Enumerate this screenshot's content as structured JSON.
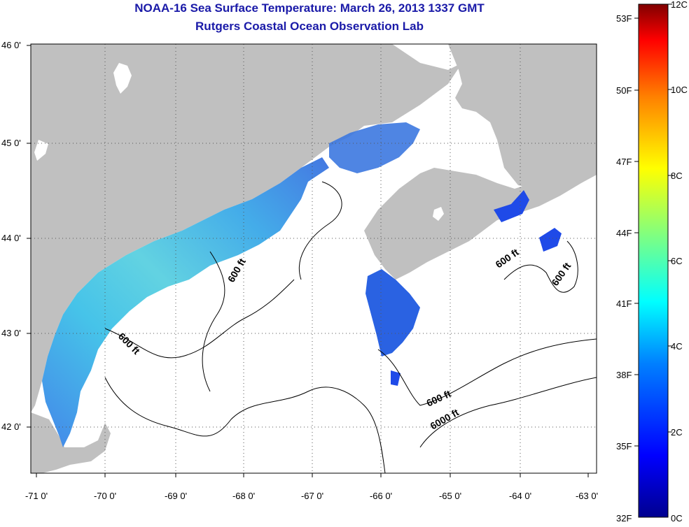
{
  "title": {
    "line1": "NOAA-16 Sea Surface Temperature:  March 26, 2013 1337 GMT",
    "line2": "Rutgers Coastal Ocean Observation Lab"
  },
  "axes": {
    "x_ticks": [
      "-71 0'",
      "-70 0'",
      "-69 0'",
      "-68 0'",
      "-67 0'",
      "-66 0'",
      "-65 0'",
      "-64 0'",
      "-63 0'"
    ],
    "y_ticks": [
      "46 0'",
      "45 0'",
      "44 0'",
      "43 0'",
      "42 0'"
    ]
  },
  "contour_labels": [
    "600 ft",
    "600 ft",
    "600 ft",
    "600 ft",
    "600 ft",
    "6000 ft"
  ],
  "colorbar": {
    "fahrenheit": [
      "53F",
      "50F",
      "47F",
      "44F",
      "41F",
      "38F",
      "35F",
      "32F"
    ],
    "celsius": [
      "12C",
      "10C",
      "8C",
      "6C",
      "4C",
      "2C",
      "0C"
    ]
  },
  "colors": {
    "land": "#c0c0c0",
    "ocean": "#ffffff",
    "title": "#1a1aa8",
    "sst_warm": "#3cc0e0",
    "sst_cold": "#1a55e0"
  }
}
